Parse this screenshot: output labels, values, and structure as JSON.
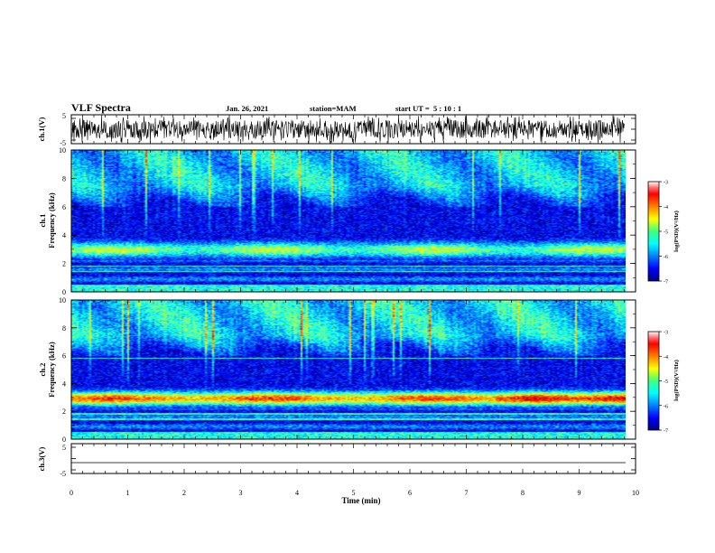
{
  "header": {
    "title": "VLF Spectra",
    "date": "Jan. 26, 2021",
    "station": "station=MAM",
    "start_ut": "start UT =  5 : 10 : 1"
  },
  "chart_data": [
    {
      "type": "line",
      "panel": "ch1-waveform",
      "ylabel": "ch.1(V)",
      "ylim": [
        -5,
        5
      ],
      "yticks": [
        "5",
        "-5"
      ],
      "xlim": [
        0,
        10
      ],
      "signal": "broadband noise, amplitude about ±4 V, spanning 0–9.8 min"
    },
    {
      "type": "heatmap",
      "panel": "ch1-spectrogram",
      "ylabel": "ch.1\nFrequency (kHz)",
      "ylim": [
        0,
        10
      ],
      "yticks": [
        "0",
        "2",
        "4",
        "6",
        "8",
        "10"
      ],
      "xlim": [
        0,
        10
      ],
      "data_extent_min": 9.8,
      "colorbar": {
        "label": "log(PSD)(V²/Hz)",
        "range": [
          -7,
          -3
        ],
        "ticks": [
          "-3",
          "-4",
          "-5",
          "-6",
          "-7"
        ]
      },
      "features": [
        {
          "name": "band",
          "fmin_khz": 2.3,
          "fmax_khz": 3.6,
          "log_psd": -5.0
        },
        {
          "name": "high-frequency hiss",
          "fmin_khz": 6.0,
          "fmax_khz": 10.0,
          "log_psd": -5.7
        },
        {
          "name": "quiet region",
          "fmin_khz": 3.8,
          "fmax_khz": 6.0,
          "log_psd": -6.4
        }
      ]
    },
    {
      "type": "heatmap",
      "panel": "ch2-spectrogram",
      "ylabel": "ch.2\nFrequency (kHz)",
      "ylim": [
        0,
        10
      ],
      "yticks": [
        "0",
        "2",
        "4",
        "6",
        "8",
        "10"
      ],
      "xlim": [
        0,
        10
      ],
      "data_extent_min": 9.8,
      "colorbar": {
        "label": "log(PSD)(V²/Hz)",
        "range": [
          -7,
          -3
        ],
        "ticks": [
          "-3",
          "-4",
          "-5",
          "-6",
          "-7"
        ]
      },
      "features": [
        {
          "name": "band",
          "fmin_khz": 2.3,
          "fmax_khz": 3.5,
          "log_psd": -4.0
        },
        {
          "name": "band intensification",
          "tmin": 7.5,
          "tmax": 9.8,
          "log_psd": -3.6
        },
        {
          "name": "high-frequency hiss",
          "fmin_khz": 6.0,
          "fmax_khz": 10.0,
          "log_psd": -5.6
        }
      ]
    },
    {
      "type": "line",
      "panel": "ch3-waveform",
      "ylabel": "ch.3(V)",
      "ylim": [
        -5,
        5
      ],
      "yticks": [
        "5",
        "-5"
      ],
      "xlim": [
        0,
        10
      ],
      "xlabel": "Time (min)",
      "xticks": [
        "0",
        "1",
        "2",
        "3",
        "4",
        "5",
        "6",
        "7",
        "8",
        "9",
        "10"
      ],
      "signal": "flat trace near 0 V"
    }
  ]
}
